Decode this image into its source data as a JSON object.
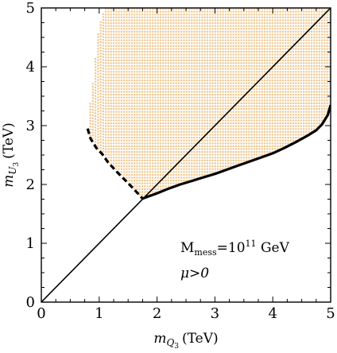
{
  "chart_data": {
    "type": "scatter",
    "title": "",
    "xlabel": "(TeV)",
    "xlabel_symbol": "m",
    "xlabel_sub": "Q",
    "xlabel_subsub": "3",
    "ylabel": "(TeV)",
    "ylabel_symbol": "m",
    "ylabel_sub": "U",
    "ylabel_subsub": "3",
    "xlim": [
      0,
      5
    ],
    "ylim": [
      0,
      5
    ],
    "x_ticks": [
      0,
      1,
      2,
      3,
      4,
      5
    ],
    "y_ticks": [
      0,
      1,
      2,
      3,
      4,
      5
    ],
    "grid": false,
    "colors": {
      "dots": "#f0c890",
      "lines": "#000000",
      "frame": "#000000"
    },
    "annotation": {
      "base": "M",
      "sub": "mess",
      "mid": "=10",
      "sup": "11",
      "tail": " GeV",
      "line2": "μ>0"
    },
    "reference_line": {
      "x": [
        0,
        5
      ],
      "y": [
        0,
        5
      ]
    },
    "dashed_boundary": {
      "x": [
        0.8,
        0.85,
        0.95,
        1.05,
        1.15,
        1.3,
        1.45,
        1.6,
        1.75
      ],
      "y": [
        2.95,
        2.78,
        2.62,
        2.52,
        2.38,
        2.22,
        2.07,
        1.92,
        1.76
      ]
    },
    "solid_boundary": {
      "x": [
        1.75,
        2.0,
        2.2,
        2.4,
        2.6,
        2.8,
        3.0,
        3.2,
        3.4,
        3.6,
        3.8,
        4.0,
        4.2,
        4.4,
        4.6,
        4.75,
        4.85,
        4.95,
        5.0
      ],
      "y": [
        1.76,
        1.85,
        1.93,
        2.0,
        2.06,
        2.12,
        2.18,
        2.25,
        2.32,
        2.39,
        2.46,
        2.53,
        2.62,
        2.72,
        2.83,
        2.92,
        3.02,
        3.18,
        3.35
      ]
    },
    "region": {
      "top_y": 5.0,
      "left_edge": {
        "x": [
          0.8,
          0.82,
          0.86,
          0.9,
          0.93,
          0.95,
          0.97,
          1.0,
          1.05,
          1.1
        ],
        "y": [
          2.95,
          3.2,
          3.5,
          3.8,
          4.1,
          4.3,
          4.5,
          4.7,
          4.85,
          5.0
        ]
      },
      "upper_left_corner": {
        "x": 1.05,
        "y": 5.0
      },
      "hatch_step": 0.045
    }
  }
}
